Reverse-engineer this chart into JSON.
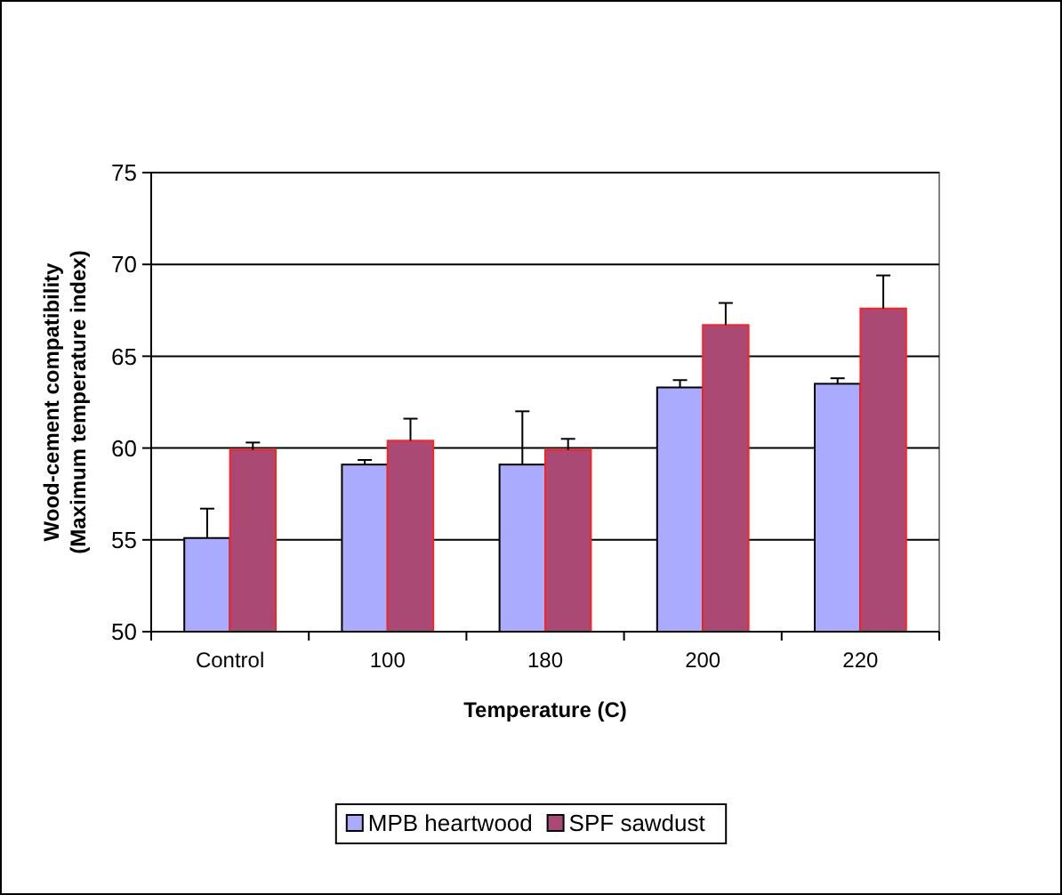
{
  "chart_data": {
    "type": "bar",
    "xlabel": "Temperature (C)",
    "ylabel": "Wood-cement compatibility\n(Maximum temperature index)",
    "categories": [
      "Control",
      "100",
      "180",
      "200",
      "220"
    ],
    "series": [
      {
        "name": "MPB heartwood",
        "color": "#aaaaff",
        "values": [
          55.1,
          59.1,
          59.1,
          63.3,
          63.5
        ],
        "errors": [
          1.6,
          0.25,
          2.9,
          0.4,
          0.3
        ]
      },
      {
        "name": "SPF sawdust",
        "color": "#aa4a74",
        "values": [
          59.9,
          60.4,
          59.9,
          66.7,
          67.6
        ],
        "errors": [
          0.4,
          1.2,
          0.6,
          1.2,
          1.8
        ]
      }
    ],
    "ylim": [
      50,
      75
    ],
    "yticks": [
      50,
      55,
      60,
      65,
      70,
      75
    ],
    "grid": "y",
    "legend": "bottom"
  }
}
